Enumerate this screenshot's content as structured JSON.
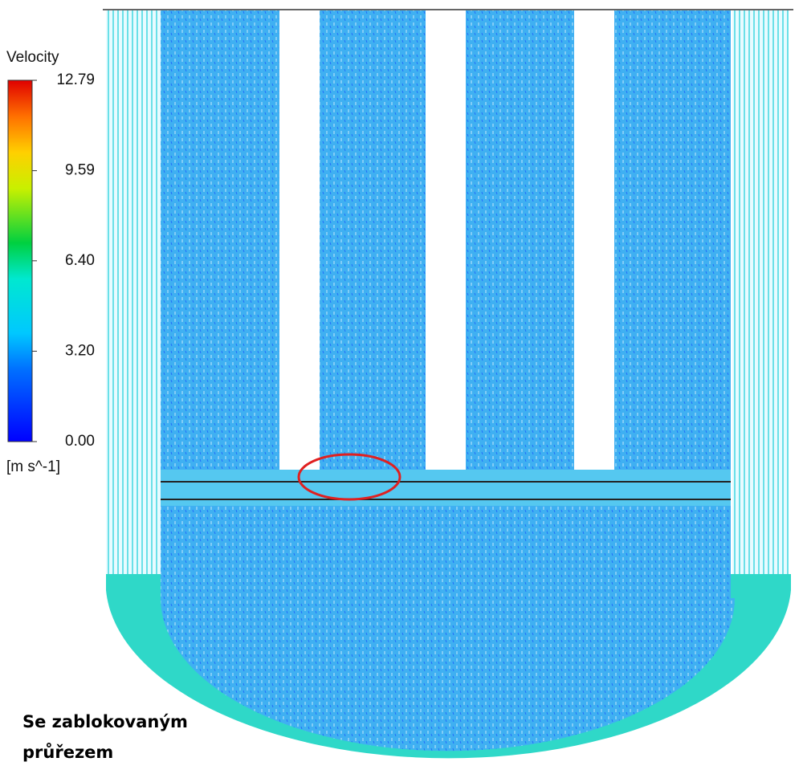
{
  "colorbar": {
    "title": "Velocity",
    "unit": "[m s^-1]",
    "range": [
      0,
      12.79
    ],
    "ticks": [
      {
        "value": 12.79,
        "label": "12.79"
      },
      {
        "value": 9.59,
        "label": "9.59"
      },
      {
        "value": 6.4,
        "label": "6.40"
      },
      {
        "value": 3.2,
        "label": "3.20"
      },
      {
        "value": 0,
        "label": "0.00"
      }
    ]
  },
  "caption": "Se zablokovaným průřezem"
}
